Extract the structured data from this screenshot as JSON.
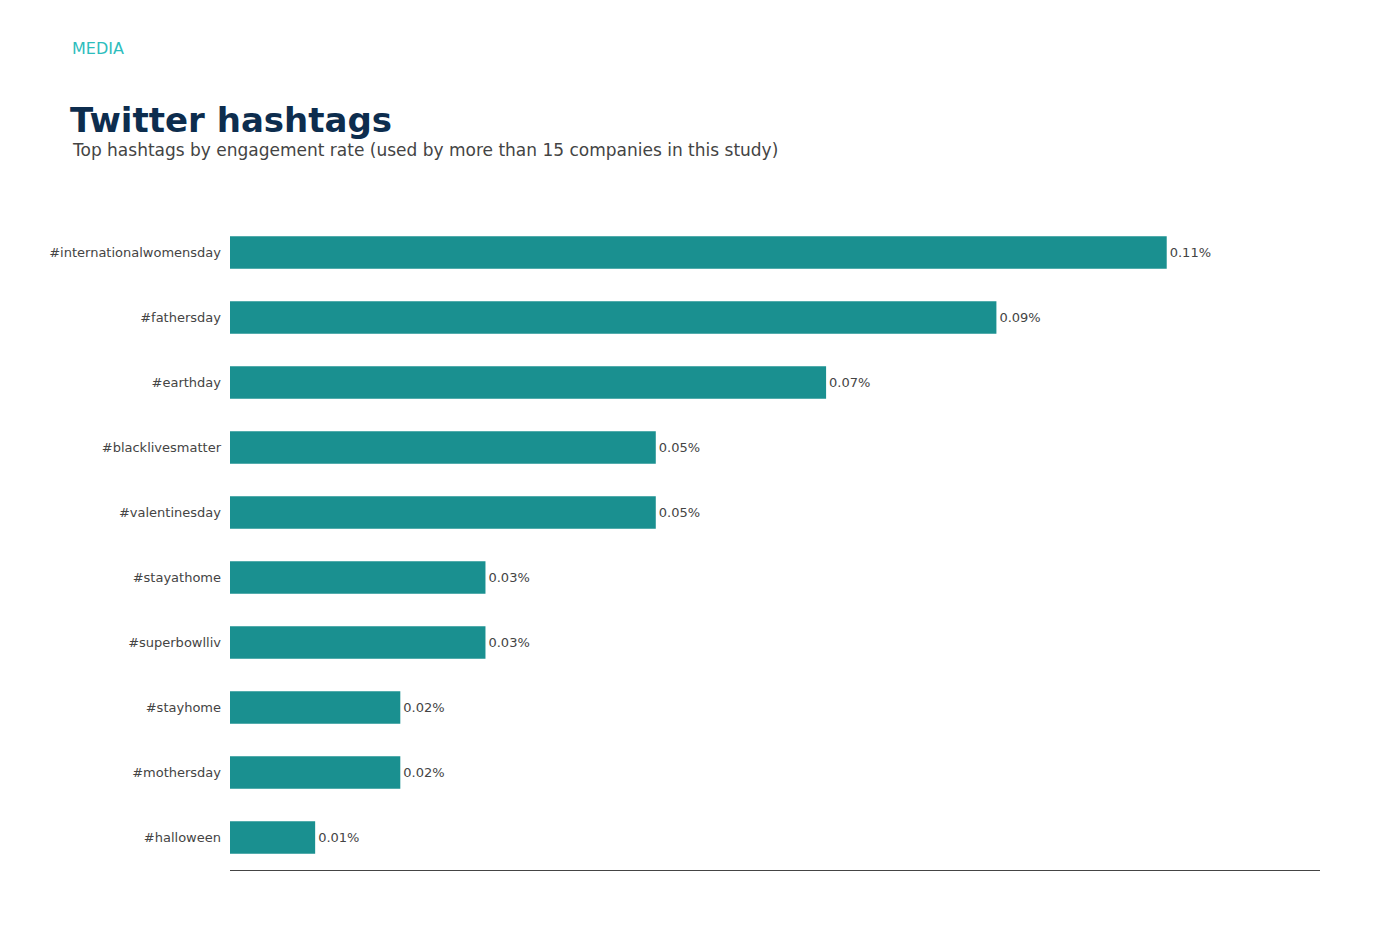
{
  "chart_data": {
    "type": "bar",
    "orientation": "horizontal",
    "title": "Twitter hashtags",
    "subtitle": "Top hashtags by engagement rate (used by more than 15 companies in this study)",
    "annotations": [
      "MEDIA"
    ],
    "categories": [
      "#internationalwomensday",
      "#fathersday",
      "#earthday",
      "#blacklivesmatter",
      "#valentinesday",
      "#stayathome",
      "#superbowlliv",
      "#stayhome",
      "#mothersday",
      "#halloween"
    ],
    "values": [
      0.0011,
      0.0009,
      0.0007,
      0.0005,
      0.0005,
      0.0003,
      0.0003,
      0.0002,
      0.0002,
      0.0001
    ],
    "value_labels": [
      "0.11%",
      "0.09%",
      "0.07%",
      "0.05%",
      "0.05%",
      "0.03%",
      "0.03%",
      "0.02%",
      "0.02%",
      "0.01%"
    ],
    "color": "#1a9090",
    "xlim": [
      0,
      0.00128
    ],
    "data_labels": true,
    "tick_labels": "y",
    "grid": false
  }
}
